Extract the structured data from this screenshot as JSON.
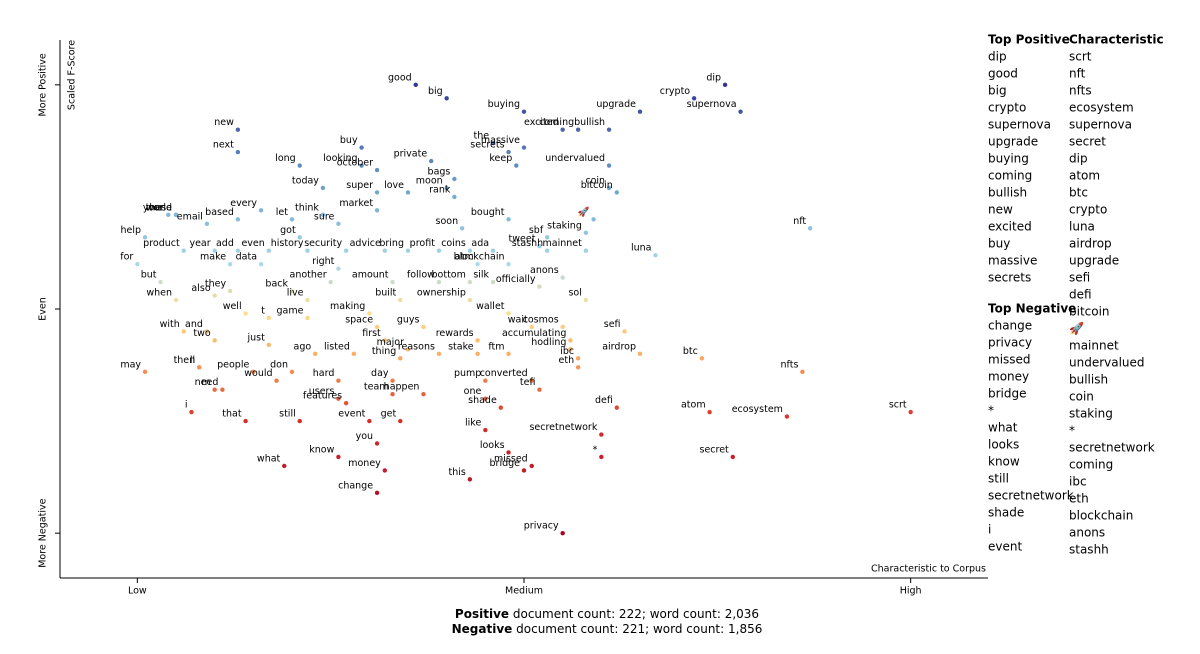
{
  "chart_data": {
    "type": "scatter",
    "x_label": "Characteristic to Corpus",
    "y_label": "Scaled F-Score",
    "xlim": [
      -0.1,
      1.1
    ],
    "ylim": [
      -0.1,
      1.1
    ],
    "xticks": [
      {
        "value": 0,
        "label": "Low"
      },
      {
        "value": 0.5,
        "label": "Medium"
      },
      {
        "value": 1,
        "label": "High"
      }
    ],
    "yticks": [
      {
        "value": 0,
        "label": "More Negative"
      },
      {
        "value": 0.5,
        "label": "Even"
      },
      {
        "value": 1,
        "label": "More Positive"
      }
    ],
    "colormap": "RdYlBu",
    "labels": [
      "good",
      "big",
      "crypto",
      "dip",
      "supernova",
      "buying",
      "upgrade",
      "new",
      "excited",
      "bullish",
      "coming",
      "the",
      "buy",
      "next",
      "massive",
      "private",
      "secrets",
      "long",
      "looking",
      "keep",
      "october",
      "undervalued",
      "today",
      "super",
      "moon",
      "coin",
      "bitcoin",
      "love",
      "rank",
      "bags",
      "world",
      "your",
      "these",
      "every",
      "think",
      "market",
      "based",
      "email",
      "let",
      "sure",
      "bought",
      "soon",
      "got",
      "sbf",
      "staking",
      "🚀",
      "nft",
      "help",
      "tweet",
      "mainnet",
      "product",
      "year",
      "add",
      "even",
      "history",
      "security",
      "advice",
      "bring",
      "profit",
      "coins",
      "ada",
      "stashh",
      "luna",
      "for",
      "make",
      "data",
      "atm",
      "blockchain",
      "right",
      "but",
      "another",
      "amount",
      "follow",
      "bottom",
      "silk",
      "anons",
      "officially",
      "they",
      "back",
      "also",
      "when",
      "live",
      "built",
      "ownership",
      "sol",
      "well",
      "making",
      "wallet",
      "t",
      "game",
      "space",
      "guys",
      "wait",
      "cosmos",
      "with",
      "and",
      "rewards",
      "accumulating",
      "sefi",
      "two",
      "just",
      "first",
      "major",
      "hodling",
      "ago",
      "listed",
      "reasons",
      "stake",
      "ftm",
      "ibc",
      "airdrop",
      "btc",
      "thing",
      "then",
      "ll",
      "may",
      "people",
      "don",
      "eth",
      "nfts",
      "m",
      "would",
      "hard",
      "day",
      "pump",
      "converted",
      "team",
      "tefi",
      "happen",
      "need",
      "users",
      "features",
      "one",
      "i",
      "shade",
      "defi",
      "atom",
      "ecosystem",
      "scrt",
      "that",
      "still",
      "event",
      "get",
      "like",
      "secretnetwork",
      "you",
      "looks",
      "know",
      "secret",
      "*",
      "missed",
      "what",
      "bridge",
      "money",
      "this",
      "change",
      "privacy"
    ],
    "x": [
      0.36,
      0.4,
      0.72,
      0.76,
      0.78,
      0.5,
      0.65,
      0.13,
      0.55,
      0.61,
      0.57,
      0.46,
      0.29,
      0.13,
      0.5,
      0.38,
      0.48,
      0.21,
      0.29,
      0.49,
      0.31,
      0.61,
      0.24,
      0.31,
      0.4,
      0.61,
      0.62,
      0.35,
      0.41,
      0.41,
      0.05,
      0.04,
      0.05,
      0.16,
      0.24,
      0.31,
      0.13,
      0.09,
      0.2,
      0.26,
      0.48,
      0.42,
      0.21,
      0.53,
      0.58,
      0.59,
      0.87,
      0.01,
      0.52,
      0.58,
      0.06,
      0.1,
      0.13,
      0.17,
      0.22,
      0.27,
      0.32,
      0.35,
      0.39,
      0.43,
      0.46,
      0.53,
      0.67,
      0.0,
      0.12,
      0.16,
      0.44,
      0.48,
      0.26,
      0.03,
      0.25,
      0.33,
      0.39,
      0.43,
      0.46,
      0.55,
      0.52,
      0.12,
      0.2,
      0.1,
      0.05,
      0.22,
      0.34,
      0.43,
      0.58,
      0.14,
      0.3,
      0.48,
      0.17,
      0.22,
      0.31,
      0.37,
      0.51,
      0.55,
      0.06,
      0.09,
      0.44,
      0.56,
      0.63,
      0.1,
      0.17,
      0.32,
      0.35,
      0.56,
      0.23,
      0.28,
      0.39,
      0.44,
      0.48,
      0.57,
      0.65,
      0.73,
      0.34,
      0.08,
      0.08,
      0.01,
      0.15,
      0.2,
      0.57,
      0.86,
      0.1,
      0.18,
      0.26,
      0.33,
      0.45,
      0.51,
      0.33,
      0.52,
      0.37,
      0.11,
      0.26,
      0.27,
      0.45,
      0.07,
      0.47,
      0.62,
      0.74,
      0.84,
      1.0,
      0.14,
      0.21,
      0.3,
      0.34,
      0.45,
      0.6,
      0.31,
      0.48,
      0.26,
      0.77,
      0.6,
      0.51,
      0.19,
      0.5,
      0.32,
      0.43,
      0.31,
      0.55
    ],
    "values": [
      1.0,
      0.97,
      0.97,
      1.0,
      0.94,
      0.94,
      0.94,
      0.9,
      0.9,
      0.9,
      0.9,
      0.87,
      0.86,
      0.85,
      0.86,
      0.83,
      0.85,
      0.82,
      0.82,
      0.82,
      0.81,
      0.82,
      0.77,
      0.76,
      0.77,
      0.77,
      0.76,
      0.76,
      0.75,
      0.79,
      0.71,
      0.71,
      0.71,
      0.72,
      0.71,
      0.72,
      0.7,
      0.69,
      0.7,
      0.69,
      0.7,
      0.68,
      0.66,
      0.66,
      0.67,
      0.7,
      0.68,
      0.66,
      0.64,
      0.63,
      0.63,
      0.63,
      0.63,
      0.63,
      0.63,
      0.63,
      0.63,
      0.63,
      0.63,
      0.63,
      0.63,
      0.63,
      0.62,
      0.6,
      0.6,
      0.6,
      0.6,
      0.6,
      0.59,
      0.56,
      0.56,
      0.56,
      0.56,
      0.56,
      0.56,
      0.57,
      0.55,
      0.54,
      0.54,
      0.53,
      0.52,
      0.52,
      0.52,
      0.52,
      0.52,
      0.49,
      0.49,
      0.49,
      0.48,
      0.48,
      0.46,
      0.46,
      0.46,
      0.46,
      0.45,
      0.45,
      0.43,
      0.43,
      0.45,
      0.43,
      0.42,
      0.43,
      0.41,
      0.41,
      0.4,
      0.4,
      0.4,
      0.4,
      0.4,
      0.39,
      0.4,
      0.39,
      0.39,
      0.37,
      0.37,
      0.36,
      0.36,
      0.36,
      0.37,
      0.36,
      0.32,
      0.34,
      0.34,
      0.34,
      0.34,
      0.34,
      0.31,
      0.32,
      0.31,
      0.32,
      0.3,
      0.29,
      0.3,
      0.27,
      0.28,
      0.28,
      0.27,
      0.26,
      0.27,
      0.25,
      0.25,
      0.25,
      0.25,
      0.23,
      0.22,
      0.2,
      0.18,
      0.17,
      0.17,
      0.17,
      0.15,
      0.15,
      0.14,
      0.14,
      0.12,
      0.09,
      0.0
    ]
  },
  "footer": {
    "positive_label": "Positive",
    "positive_text": "document count: 222; word count: 2,036",
    "negative_label": "Negative",
    "negative_text": "document count: 221; word count: 1,856"
  },
  "lists": {
    "top_positive": {
      "title": "Top Positive",
      "items": [
        "dip",
        "good",
        "big",
        "crypto",
        "supernova",
        "upgrade",
        "buying",
        "coming",
        "bullish",
        "new",
        "excited",
        "buy",
        "massive",
        "secrets"
      ]
    },
    "top_negative": {
      "title": "Top Negative",
      "items": [
        "change",
        "privacy",
        "missed",
        "money",
        "bridge",
        "*",
        "what",
        "looks",
        "know",
        "still",
        "secretnetwork",
        "shade",
        "i",
        "event"
      ]
    },
    "characteristic": {
      "title": "Characteristic",
      "items": [
        "scrt",
        "nft",
        "nfts",
        "ecosystem",
        "supernova",
        "secret",
        "dip",
        "atom",
        "btc",
        "crypto",
        "luna",
        "airdrop",
        "upgrade",
        "sefi",
        "defi",
        "bitcoin",
        "🚀",
        "mainnet",
        "undervalued",
        "bullish",
        "coin",
        "staking",
        "*",
        "secretnetwork",
        "coming",
        "ibc",
        "eth",
        "blockchain",
        "anons",
        "stashh"
      ]
    }
  }
}
